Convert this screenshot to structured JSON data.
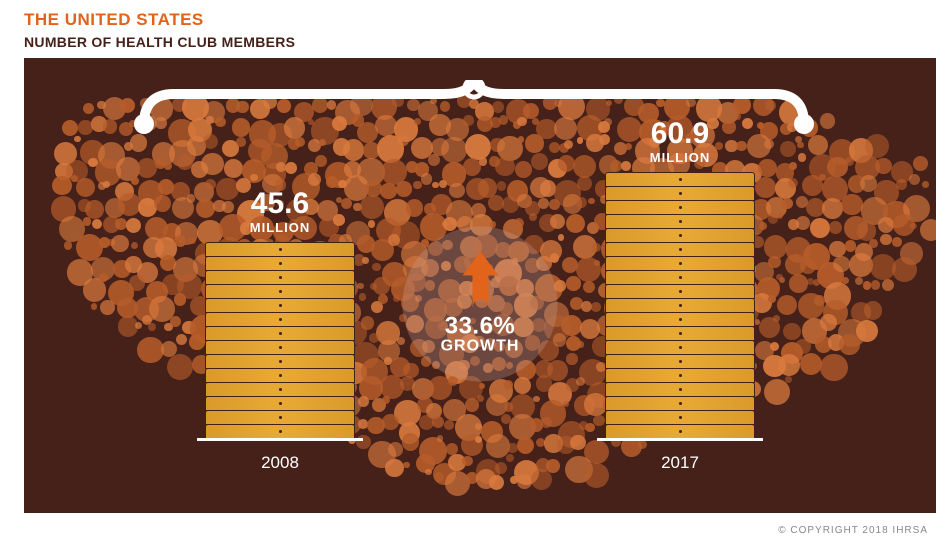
{
  "header": {
    "title": "THE UNITED STATES",
    "subtitle": "NUMBER OF HEALTH CLUB MEMBERS",
    "title_color": "#e2631a",
    "subtitle_color": "#46211a",
    "title_fontsize": 17,
    "subtitle_fontsize": 14
  },
  "chart": {
    "type": "infographic-bar",
    "background_color": "#46211a",
    "map_dot_colors": [
      "#b65c2a",
      "#d97a3e"
    ],
    "bracket_color": "#ffffff",
    "bracket_stroke_width": 10,
    "bars": [
      {
        "year": "2008",
        "value": 45.6,
        "unit": "MILLION",
        "coins": 14
      },
      {
        "year": "2017",
        "value": 60.9,
        "unit": "MILLION",
        "coins": 19
      }
    ],
    "coin_fill": "#e7a934",
    "coin_border": "#402018",
    "baseline_color": "#ffffff",
    "value_text_color": "#ffffff",
    "value_fontsize_big": 30,
    "value_fontsize_small": 13,
    "year_fontsize": 17,
    "badge": {
      "bg_color": "rgba(200,160,150,0.3)",
      "diameter": 155,
      "arrow_color": "#e2631a",
      "percent": "33.6%",
      "label": "GROWTH",
      "text_color": "#ffffff",
      "pct_fontsize": 24,
      "lbl_fontsize": 16
    }
  },
  "footer": {
    "copyright": "© COPYRIGHT 2018 IHRSA",
    "color": "#888888",
    "fontsize": 10
  }
}
